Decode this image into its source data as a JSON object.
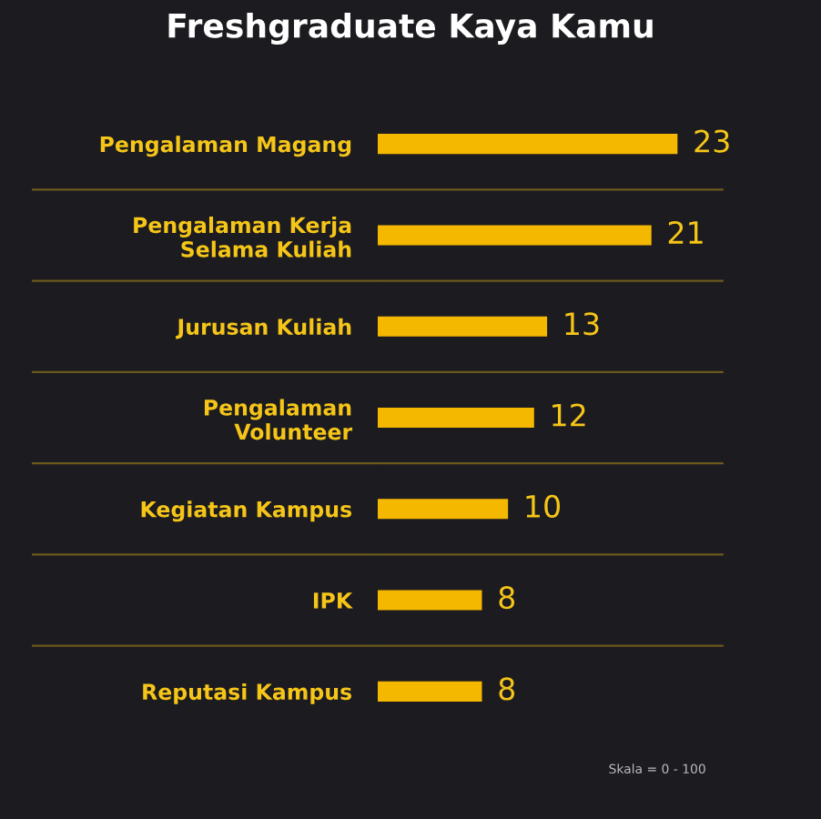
{
  "chart_data": {
    "type": "bar",
    "orientation": "horizontal",
    "title": "Freshgraduate Kaya Kamu",
    "categories": [
      "Pengalaman Magang",
      "Pengalaman Kerja\nSelama Kuliah",
      "Jurusan Kuliah",
      "Pengalaman\nVolunteer",
      "Kegiatan Kampus",
      "IPK",
      "Reputasi Kampus"
    ],
    "values": [
      23,
      21,
      13,
      12,
      10,
      8,
      8
    ],
    "color": "#f5b800",
    "data_labels": true,
    "grid": false,
    "annotations": [
      "Skala = 0 - 100"
    ]
  }
}
